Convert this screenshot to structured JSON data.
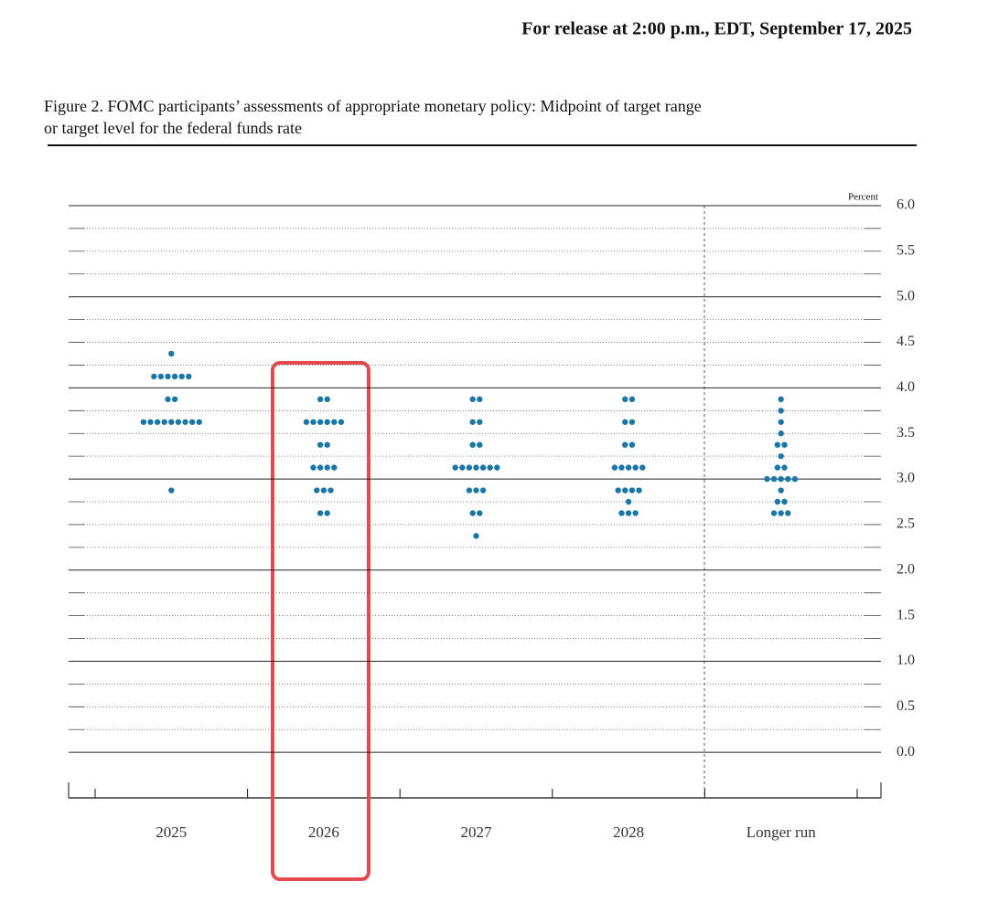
{
  "header": "For release at 2:00 p.m., EDT, September 17, 2025",
  "chart_data": {
    "type": "dot",
    "title": [
      "Figure 2. FOMC participants’ assessments of appropriate monetary policy: Midpoint of target range",
      "or target level for the federal funds rate"
    ],
    "y_label": "Percent",
    "categories": [
      "2025",
      "2026",
      "2027",
      "2028",
      "Longer run"
    ],
    "color": "#1a76a6",
    "ylim": [
      -0.5,
      6.0
    ],
    "yticks": [
      {
        "value": 0,
        "label": "0.0"
      },
      0.5,
      {
        "value": 1,
        "label": "1.0"
      },
      1.5,
      {
        "value": 2,
        "label": "2.0"
      },
      2.5,
      {
        "value": 3,
        "label": "3.0"
      },
      3.5,
      {
        "value": 4,
        "label": "4.0"
      },
      4.5,
      {
        "value": 5,
        "label": "5.0"
      },
      5.5,
      {
        "value": 6,
        "label": "6.0"
      }
    ],
    "ygrid": [
      0,
      0.25,
      0.5,
      0.75,
      1,
      1.25,
      1.5,
      1.75,
      2,
      2.25,
      2.5,
      2.75,
      3,
      3.25,
      3.5,
      3.75,
      4,
      4.25,
      4.5,
      4.75,
      5,
      5.25,
      5.5,
      5.75,
      6
    ],
    "dots": [
      [
        {
          "rate": 4.375,
          "count": 1
        },
        {
          "rate": 4.125,
          "count": 6
        },
        {
          "rate": 3.875,
          "count": 2
        },
        {
          "rate": 3.625,
          "count": 9
        },
        {
          "rate": 2.875,
          "count": 1
        }
      ],
      [
        {
          "rate": 3.875,
          "count": 2
        },
        {
          "rate": 3.625,
          "count": 6
        },
        {
          "rate": 3.375,
          "count": 2
        },
        {
          "rate": 3.125,
          "count": 4
        },
        {
          "rate": 2.875,
          "count": 3
        },
        {
          "rate": 2.625,
          "count": 2
        }
      ],
      [
        {
          "rate": 3.875,
          "count": 2
        },
        {
          "rate": 3.625,
          "count": 2
        },
        {
          "rate": 3.375,
          "count": 2
        },
        {
          "rate": 3.125,
          "count": 7
        },
        {
          "rate": 2.875,
          "count": 3
        },
        {
          "rate": 2.625,
          "count": 2
        },
        {
          "rate": 2.375,
          "count": 1
        }
      ],
      [
        {
          "rate": 3.875,
          "count": 2
        },
        {
          "rate": 3.625,
          "count": 2
        },
        {
          "rate": 3.375,
          "count": 2
        },
        {
          "rate": 3.125,
          "count": 5
        },
        {
          "rate": 2.875,
          "count": 4
        },
        {
          "rate": 2.75,
          "count": 1
        },
        {
          "rate": 2.625,
          "count": 3
        }
      ],
      [
        {
          "rate": 3.875,
          "count": 1
        },
        {
          "rate": 3.75,
          "count": 1
        },
        {
          "rate": 3.625,
          "count": 1
        },
        {
          "rate": 3.5,
          "count": 1
        },
        {
          "rate": 3.375,
          "count": 2
        },
        {
          "rate": 3.25,
          "count": 1
        },
        {
          "rate": 3.125,
          "count": 2
        },
        {
          "rate": 3.0,
          "count": 5
        },
        {
          "rate": 2.875,
          "count": 1
        },
        {
          "rate": 2.75,
          "count": 2
        },
        {
          "rate": 2.625,
          "count": 3
        }
      ]
    ]
  }
}
